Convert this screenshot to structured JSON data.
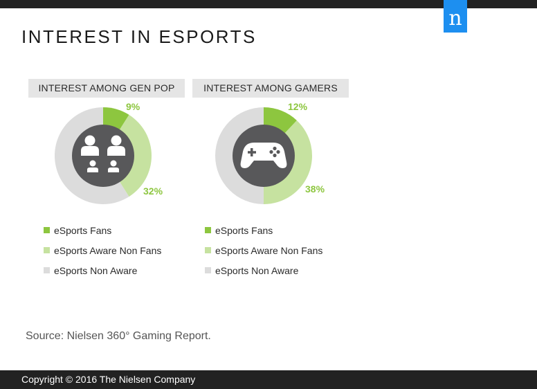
{
  "title": "INTEREST IN ESPORTS",
  "logo_letter": "n",
  "colors": {
    "fans": "#8dc63f",
    "aware": "#c6e2a0",
    "non_aware": "#dcdcdc",
    "center": "#58585a",
    "brand": "#1d8ff0"
  },
  "chart_data": [
    {
      "type": "pie",
      "title": "INTEREST AMONG GEN POP",
      "icon": "people-icon",
      "categories": [
        "eSports Fans",
        "eSports Aware Non Fans",
        "eSports Non Aware"
      ],
      "values": [
        9,
        32,
        59
      ],
      "labels": [
        "9%",
        "32%"
      ]
    },
    {
      "type": "pie",
      "title": "INTEREST AMONG GAMERS",
      "icon": "gamepad-icon",
      "categories": [
        "eSports Fans",
        "eSports Aware Non Fans",
        "eSports Non Aware"
      ],
      "values": [
        12,
        38,
        50
      ],
      "labels": [
        "12%",
        "38%"
      ]
    }
  ],
  "source": "Source: Nielsen 360° Gaming Report.",
  "footer": "Copyright © 2016 The Nielsen Company"
}
